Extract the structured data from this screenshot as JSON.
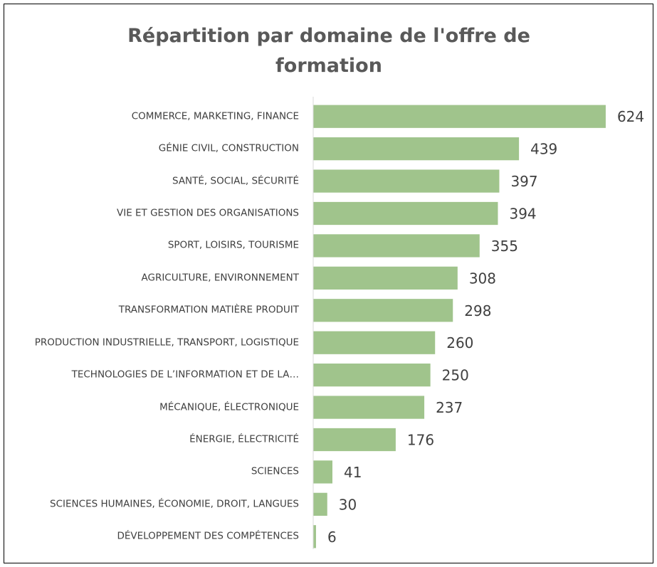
{
  "chart_data": {
    "type": "hbar",
    "title": "Répartition par domaine de l'offre de formation",
    "categories": [
      "COMMERCE, MARKETING, FINANCE",
      "GÉNIE CIVIL, CONSTRUCTION",
      "SANTÉ, SOCIAL, SÉCURITÉ",
      "VIE ET GESTION DES ORGANISATIONS",
      "SPORT, LOISIRS, TOURISME",
      "AGRICULTURE, ENVIRONNEMENT",
      "TRANSFORMATION MATIÈRE PRODUIT",
      "PRODUCTION INDUSTRIELLE, TRANSPORT, LOGISTIQUE",
      "TECHNOLOGIES DE L’INFORMATION ET DE LA…",
      "MÉCANIQUE, ÉLECTRONIQUE",
      "ÉNERGIE, ÉLECTRICITÉ",
      "SCIENCES",
      "SCIENCES HUMAINES, ÉCONOMIE, DROIT, LANGUES",
      "DÉVELOPPEMENT DES COMPÉTENCES"
    ],
    "values": [
      624,
      439,
      397,
      394,
      355,
      308,
      298,
      260,
      250,
      237,
      176,
      41,
      30,
      6
    ],
    "color": "#a0c48c",
    "xlim": [
      0,
      700
    ]
  }
}
